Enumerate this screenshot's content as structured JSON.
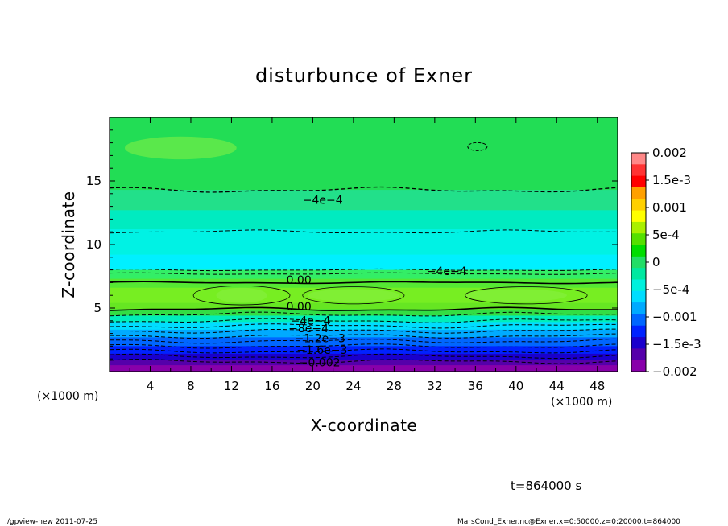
{
  "chart_data": {
    "type": "heatmap",
    "title": "disturbunce of Exner",
    "xlabel": "X-coordinate",
    "ylabel": "Z-coordinate",
    "x_unit": "(×1000 m)",
    "y_unit": "(×1000 m)",
    "xlim": [
      0,
      50
    ],
    "ylim": [
      0,
      20
    ],
    "x_ticks": [
      4,
      8,
      12,
      16,
      20,
      24,
      28,
      32,
      36,
      40,
      44,
      48
    ],
    "x_tick_labels": [
      "4",
      "8",
      "12",
      "16",
      "20",
      "24",
      "28",
      "32",
      "36",
      "40",
      "44",
      "48"
    ],
    "y_ticks": [
      5,
      10,
      15
    ],
    "y_tick_labels": [
      "5",
      "10",
      "15"
    ],
    "colorbar": {
      "ticks": [
        0.002,
        0.0015,
        0.001,
        0.0005,
        0,
        -0.0005,
        -0.001,
        -0.0015,
        -0.002
      ],
      "tick_labels": [
        "0.002",
        "1.5e-3",
        "0.001",
        "5e-4",
        "0",
        "−5e-4",
        "−0.001",
        "−1.5e-3",
        "−0.002"
      ],
      "colors": [
        "#ff8888",
        "#ff3333",
        "#ff0000",
        "#ffa000",
        "#ffd000",
        "#ffff00",
        "#aaf000",
        "#55e000",
        "#00dd00",
        "#22dd66",
        "#00e8a0",
        "#00f0dd",
        "#00ddff",
        "#00aaff",
        "#0066ff",
        "#0022ff",
        "#1a00cc",
        "#5500aa",
        "#8800aa"
      ]
    },
    "contour_labels": [
      "−4e−4",
      "−4e−4",
      "0.00",
      "0.00",
      "−4e−4",
      "−8e−4",
      "−1.2e−3",
      "−1.6e−3",
      "−0.002"
    ],
    "annotation": "t=864000 s",
    "footer_left": "./gpview-new   2011-07-25",
    "footer_right": "MarsCond_Exner.nc@Exner,x=0:50000,z=0:20000,t=864000"
  }
}
